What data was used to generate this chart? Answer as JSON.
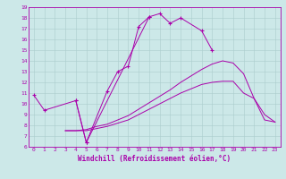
{
  "xlabel": "Windchill (Refroidissement éolien,°C)",
  "xlim": [
    -0.5,
    23.5
  ],
  "ylim": [
    6,
    19
  ],
  "xticks": [
    0,
    1,
    2,
    3,
    4,
    5,
    6,
    7,
    8,
    9,
    10,
    11,
    12,
    13,
    14,
    15,
    16,
    17,
    18,
    19,
    20,
    21,
    22,
    23
  ],
  "yticks": [
    6,
    7,
    8,
    9,
    10,
    11,
    12,
    13,
    14,
    15,
    16,
    17,
    18,
    19
  ],
  "bg_color": "#cce8e8",
  "line_color": "#aa00aa",
  "grid_color": "#aacccc",
  "series_full": [
    {
      "x": [
        0,
        1,
        4,
        5,
        11,
        12,
        13,
        14,
        16,
        17
      ],
      "y": [
        10.8,
        9.4,
        10.3,
        6.4,
        18.1,
        18.4,
        17.5,
        18.0,
        16.8,
        15.0
      ],
      "marker": true
    },
    {
      "x": [
        4,
        5,
        7,
        8,
        9,
        10,
        11
      ],
      "y": [
        10.3,
        6.4,
        11.2,
        13.0,
        13.5,
        17.2,
        18.1
      ],
      "marker": true
    },
    {
      "x": [
        3,
        4,
        5,
        6,
        7,
        8,
        9,
        10,
        11,
        12,
        13,
        14,
        15,
        16,
        17,
        18,
        19,
        20,
        21,
        22,
        23
      ],
      "y": [
        7.5,
        7.5,
        7.5,
        7.7,
        7.9,
        8.2,
        8.5,
        9.0,
        9.5,
        10.0,
        10.5,
        11.0,
        11.4,
        11.8,
        12.0,
        12.1,
        12.1,
        11.0,
        10.5,
        8.5,
        8.3
      ],
      "marker": false
    },
    {
      "x": [
        3,
        4,
        5,
        6,
        7,
        8,
        9,
        10,
        11,
        12,
        13,
        14,
        15,
        16,
        17,
        18,
        19,
        20,
        21,
        22,
        23
      ],
      "y": [
        7.5,
        7.5,
        7.6,
        7.9,
        8.1,
        8.5,
        8.9,
        9.5,
        10.1,
        10.7,
        11.3,
        12.0,
        12.6,
        13.2,
        13.7,
        14.0,
        13.8,
        12.8,
        10.5,
        9.0,
        8.3
      ],
      "marker": false
    }
  ]
}
